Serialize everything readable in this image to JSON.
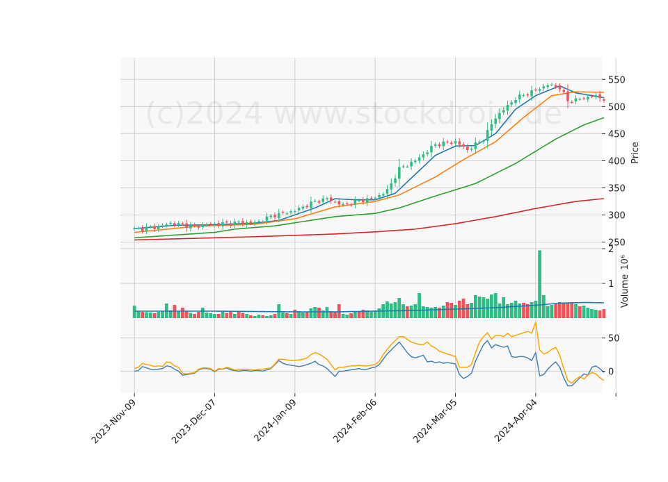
{
  "watermark": "(c)2024 www.stockdroid.de",
  "colors": {
    "background": "#ffffff",
    "panel": "#f8f8f8",
    "grid": "#d0d0d0",
    "up": "#2ebd85",
    "down": "#f0535a",
    "ma_fast": "#1f77b4",
    "ma_mid": "#ff7f0e",
    "ma_slow": "#2ca02c",
    "ma_long": "#d62728",
    "volume_ma": "#1f77b4",
    "osc_line": "#4682b4",
    "osc_signal": "#ffa500"
  },
  "chart_data": [
    {
      "type": "candlestick",
      "panel": "price",
      "ylabel": "Price",
      "ylim": [
        238,
        590
      ],
      "yticks": [
        250,
        300,
        350,
        400,
        450,
        500,
        550
      ],
      "x_range": [
        -3.5,
        116.5
      ],
      "xticks": [
        {
          "index": 0,
          "label": "2023-Nov-09"
        },
        {
          "index": 20,
          "label": "2023-Dec-07"
        },
        {
          "index": 40,
          "label": "2024-Jan-09"
        },
        {
          "index": 60,
          "label": "2024-Feb-06"
        },
        {
          "index": 80,
          "label": "2024-Mar-05"
        },
        {
          "index": 100,
          "label": "2024-Apr-04"
        },
        {
          "index": 120,
          "label": ""
        }
      ],
      "close_anchors": [
        [
          0,
          274
        ],
        [
          6,
          278
        ],
        [
          9,
          285
        ],
        [
          12,
          282
        ],
        [
          15,
          278
        ],
        [
          18,
          283
        ],
        [
          22,
          284
        ],
        [
          26,
          286
        ],
        [
          30,
          286
        ],
        [
          35,
          300
        ],
        [
          40,
          308
        ],
        [
          45,
          325
        ],
        [
          48,
          330
        ],
        [
          52,
          318
        ],
        [
          56,
          326
        ],
        [
          60,
          332
        ],
        [
          63,
          345
        ],
        [
          66,
          385
        ],
        [
          70,
          400
        ],
        [
          75,
          430
        ],
        [
          80,
          435
        ],
        [
          83,
          420
        ],
        [
          87,
          440
        ],
        [
          90,
          480
        ],
        [
          95,
          515
        ],
        [
          100,
          530
        ],
        [
          103,
          540
        ],
        [
          106,
          535
        ],
        [
          108,
          510
        ],
        [
          112,
          515
        ],
        [
          114,
          520
        ],
        [
          118,
          512
        ]
      ],
      "ma_lines": [
        {
          "key": "ma_fast",
          "anchors": [
            [
              0,
              275
            ],
            [
              10,
              281
            ],
            [
              20,
              282
            ],
            [
              30,
              285
            ],
            [
              36,
              290
            ],
            [
              45,
              313
            ],
            [
              50,
              330
            ],
            [
              55,
              328
            ],
            [
              60,
              328
            ],
            [
              65,
              340
            ],
            [
              70,
              375
            ],
            [
              75,
              410
            ],
            [
              80,
              427
            ],
            [
              85,
              428
            ],
            [
              90,
              450
            ],
            [
              95,
              495
            ],
            [
              100,
              520
            ],
            [
              106,
              538
            ],
            [
              110,
              525
            ],
            [
              118,
              515
            ]
          ]
        },
        {
          "key": "ma_mid",
          "anchors": [
            [
              0,
              268
            ],
            [
              15,
              279
            ],
            [
              30,
              283
            ],
            [
              40,
              293
            ],
            [
              50,
              315
            ],
            [
              60,
              325
            ],
            [
              66,
              337
            ],
            [
              75,
              370
            ],
            [
              82,
              402
            ],
            [
              90,
              435
            ],
            [
              97,
              480
            ],
            [
              104,
              520
            ],
            [
              110,
              527
            ],
            [
              118,
              526
            ]
          ]
        },
        {
          "key": "ma_slow",
          "anchors": [
            [
              0,
              258
            ],
            [
              20,
              268
            ],
            [
              25,
              274
            ],
            [
              35,
              280
            ],
            [
              50,
              297
            ],
            [
              60,
              303
            ],
            [
              66,
              313
            ],
            [
              75,
              335
            ],
            [
              85,
              358
            ],
            [
              95,
              395
            ],
            [
              105,
              440
            ],
            [
              112,
              466
            ],
            [
              118,
              482
            ]
          ]
        },
        {
          "key": "ma_long",
          "anchors": [
            [
              0,
              254
            ],
            [
              30,
              260
            ],
            [
              50,
              265
            ],
            [
              60,
              269
            ],
            [
              70,
              274
            ],
            [
              80,
              284
            ],
            [
              90,
              297
            ],
            [
              100,
              312
            ],
            [
              110,
              325
            ],
            [
              118,
              331
            ]
          ]
        }
      ]
    },
    {
      "type": "bar",
      "panel": "volume",
      "ylabel": "Volume",
      "ylabel_exponent": "10⁶",
      "ylim": [
        0,
        2
      ],
      "yticks": [
        1,
        2
      ],
      "values": [
        0.36,
        0.2,
        0.18,
        0.17,
        0.16,
        0.14,
        0.18,
        0.2,
        0.42,
        0.22,
        0.38,
        0.2,
        0.3,
        0.2,
        0.15,
        0.12,
        0.18,
        0.3,
        0.16,
        0.14,
        0.12,
        0.12,
        0.18,
        0.15,
        0.2,
        0.12,
        0.18,
        0.15,
        0.12,
        0.08,
        0.06,
        0.1,
        0.08,
        0.06,
        0.08,
        0.12,
        0.4,
        0.16,
        0.14,
        0.12,
        0.24,
        0.2,
        0.16,
        0.18,
        0.28,
        0.32,
        0.3,
        0.22,
        0.32,
        0.2,
        0.18,
        0.4,
        0.12,
        0.1,
        0.14,
        0.18,
        0.2,
        0.24,
        0.22,
        0.18,
        0.22,
        0.28,
        0.4,
        0.48,
        0.42,
        0.46,
        0.58,
        0.4,
        0.34,
        0.36,
        0.4,
        0.72,
        0.34,
        0.32,
        0.3,
        0.32,
        0.3,
        0.36,
        0.46,
        0.44,
        0.38,
        0.5,
        0.56,
        0.4,
        0.44,
        0.66,
        0.62,
        0.6,
        0.56,
        0.68,
        0.72,
        0.42,
        0.6,
        0.4,
        0.44,
        0.5,
        0.42,
        0.44,
        0.4,
        0.46,
        0.5,
        1.95,
        0.66,
        0.34,
        0.38,
        0.42,
        0.46,
        0.42,
        0.44,
        0.46,
        0.4,
        0.34,
        0.36,
        0.3,
        0.26,
        0.24,
        0.22,
        0.26
      ],
      "ma_anchors": [
        [
          0,
          0.2
        ],
        [
          20,
          0.2
        ],
        [
          40,
          0.18
        ],
        [
          50,
          0.18
        ],
        [
          60,
          0.2
        ],
        [
          70,
          0.22
        ],
        [
          80,
          0.26
        ],
        [
          90,
          0.3
        ],
        [
          100,
          0.37
        ],
        [
          106,
          0.43
        ],
        [
          112,
          0.45
        ],
        [
          118,
          0.44
        ]
      ]
    },
    {
      "type": "line",
      "panel": "oscillator",
      "ylim": [
        -33,
        80
      ],
      "yticks": [
        0,
        50
      ],
      "series": [
        {
          "key": "osc_line",
          "values": [
            0,
            1,
            7,
            5,
            3,
            2,
            3,
            4,
            8,
            7,
            3,
            0,
            -6,
            -5,
            -4,
            -3,
            2,
            4,
            4,
            3,
            -1,
            3,
            3,
            5,
            2,
            1,
            0,
            1,
            1,
            0,
            1,
            1,
            0,
            2,
            4,
            10,
            16,
            12,
            10,
            9,
            8,
            7,
            8,
            10,
            12,
            15,
            10,
            8,
            4,
            -2,
            -8,
            0,
            0,
            1,
            2,
            3,
            4,
            2,
            3,
            5,
            6,
            10,
            18,
            26,
            32,
            38,
            44,
            36,
            28,
            22,
            20,
            22,
            24,
            14,
            15,
            13,
            14,
            12,
            13,
            12,
            11,
            -5,
            -11,
            -8,
            -3,
            15,
            28,
            40,
            46,
            35,
            40,
            38,
            36,
            38,
            22,
            21,
            22,
            22,
            20,
            16,
            28,
            -7,
            -5,
            3,
            9,
            14,
            6,
            -10,
            -22,
            -22,
            -16,
            -10,
            -4,
            -6,
            6,
            8,
            4,
            -2
          ]
        },
        {
          "key": "osc_signal",
          "values": [
            4,
            6,
            12,
            10,
            9,
            7,
            8,
            7,
            14,
            13,
            8,
            6,
            -3,
            -4,
            -3,
            -2,
            3,
            5,
            5,
            4,
            0,
            4,
            3,
            6,
            4,
            2,
            2,
            3,
            3,
            2,
            2,
            3,
            3,
            4,
            5,
            11,
            18,
            18,
            17,
            16,
            16,
            17,
            18,
            20,
            25,
            28,
            26,
            22,
            18,
            10,
            2,
            6,
            6,
            7,
            8,
            8,
            9,
            8,
            8,
            9,
            10,
            15,
            25,
            33,
            40,
            46,
            52,
            52,
            48,
            44,
            42,
            40,
            40,
            44,
            38,
            35,
            30,
            28,
            26,
            24,
            22,
            6,
            6,
            6,
            10,
            28,
            44,
            52,
            58,
            48,
            54,
            54,
            52,
            57,
            52,
            54,
            56,
            58,
            60,
            57,
            74,
            32,
            26,
            28,
            33,
            36,
            24,
            4,
            -14,
            -18,
            -12,
            -8,
            -12,
            -6,
            -2,
            -4,
            -10,
            -14
          ]
        }
      ]
    }
  ]
}
